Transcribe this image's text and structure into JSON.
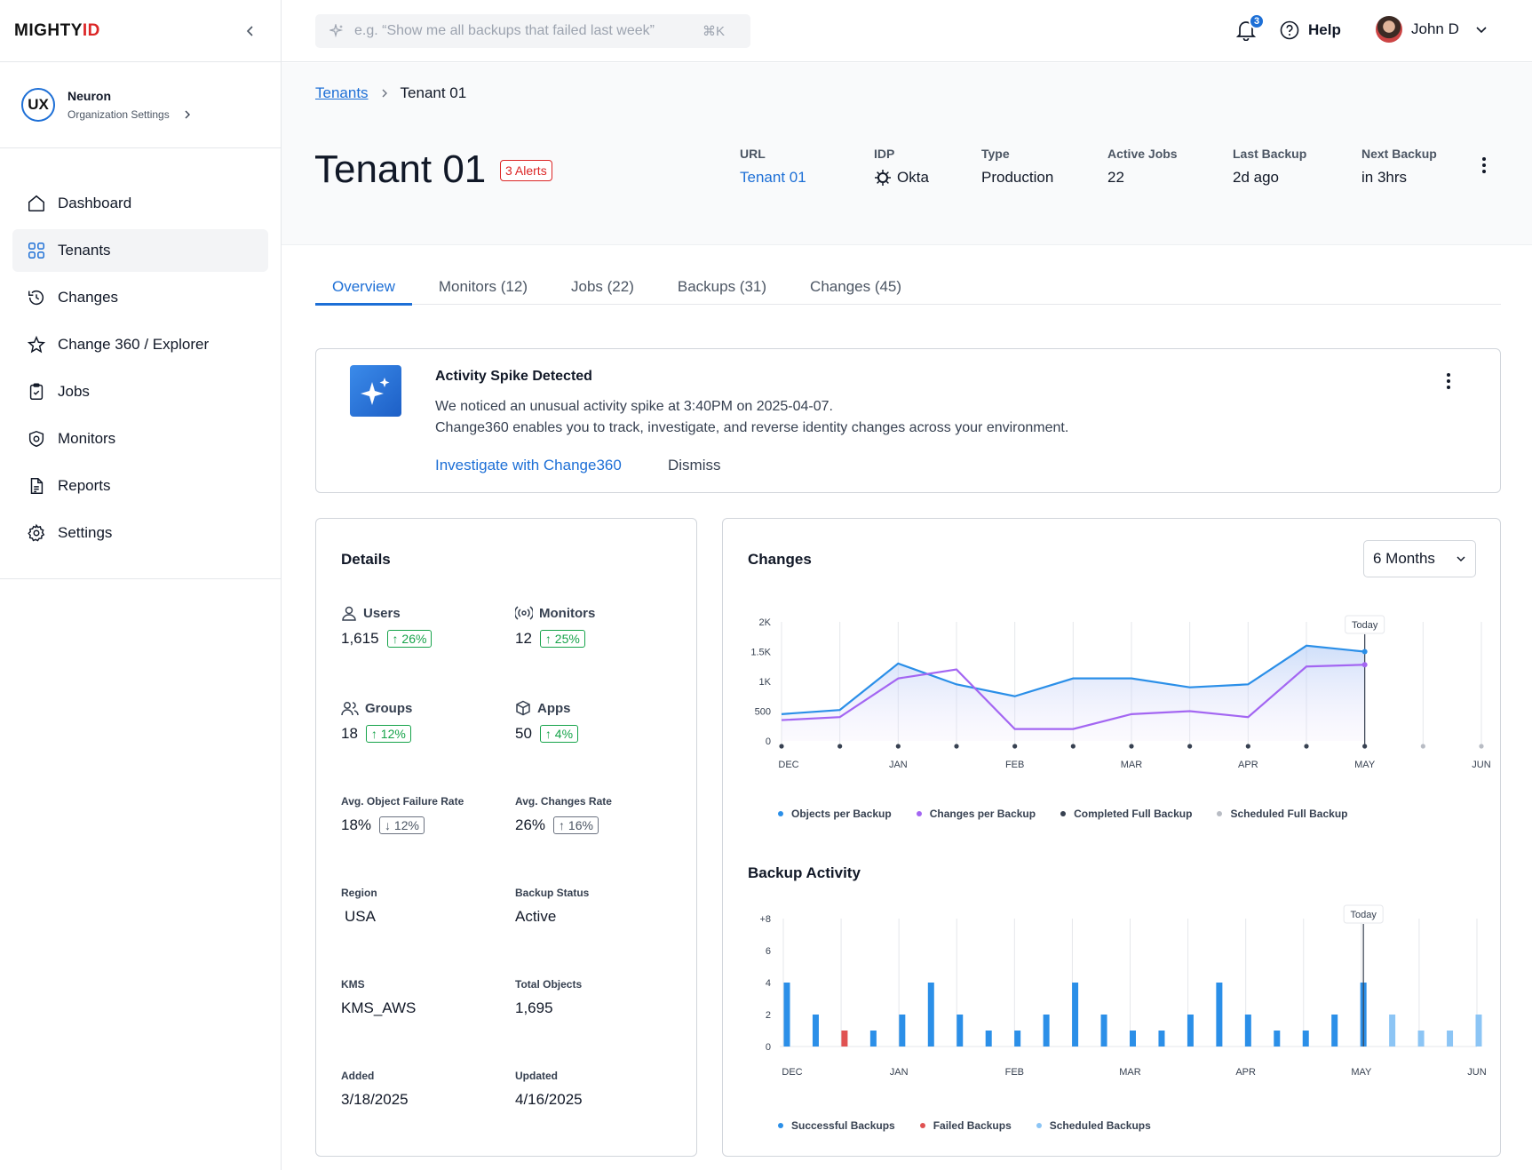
{
  "brand": {
    "logo_main": "MIGHTY",
    "logo_accent": "ID"
  },
  "org": {
    "initials": "UX",
    "name": "Neuron",
    "subtitle": "Organization Settings"
  },
  "nav": [
    {
      "label": "Dashboard",
      "icon": "home-icon"
    },
    {
      "label": "Tenants",
      "icon": "grid-icon",
      "active": true
    },
    {
      "label": "Changes",
      "icon": "history-icon"
    },
    {
      "label": "Change 360 / Explorer",
      "icon": "star-icon"
    },
    {
      "label": "Jobs",
      "icon": "clipboard-icon"
    },
    {
      "label": "Monitors",
      "icon": "monitor-shield-icon"
    },
    {
      "label": "Reports",
      "icon": "report-icon"
    },
    {
      "label": "Settings",
      "icon": "gear-icon"
    }
  ],
  "topbar": {
    "search_placeholder": "e.g. “Show me all backups that failed last week”",
    "search_shortcut": "⌘K",
    "notifications_count": "3",
    "help_label": "Help",
    "user_name": "John D"
  },
  "breadcrumb": {
    "parent": "Tenants",
    "current": "Tenant 01"
  },
  "tenant": {
    "title": "Tenant 01",
    "alerts": "3 Alerts",
    "meta": [
      {
        "label": "URL",
        "value": "Tenant 01",
        "link": true
      },
      {
        "label": "IDP",
        "value": "Okta"
      },
      {
        "label": "Type",
        "value": "Production"
      },
      {
        "label": "Active Jobs",
        "value": "22"
      },
      {
        "label": "Last Backup",
        "value": "2d ago"
      },
      {
        "label": "Next Backup",
        "value": "in 3hrs"
      }
    ]
  },
  "tabs": [
    {
      "label": "Overview",
      "active": true
    },
    {
      "label": "Monitors (12)"
    },
    {
      "label": "Jobs (22)"
    },
    {
      "label": "Backups (31)"
    },
    {
      "label": "Changes (45)"
    }
  ],
  "banner": {
    "title": "Activity Spike Detected",
    "line1": "We noticed an unusual activity spike at 3:40PM on 2025-04-07.",
    "line2": "Change360 enables you to track, investigate, and reverse identity changes across your environment.",
    "action": "Investigate with Change360",
    "dismiss": "Dismiss"
  },
  "details": {
    "title": "Details",
    "users": {
      "label": "Users",
      "value": "1,615",
      "trend": "↑ 26%"
    },
    "monitors": {
      "label": "Monitors",
      "value": "12",
      "trend": "↑ 25%"
    },
    "groups": {
      "label": "Groups",
      "value": "18",
      "trend": "↑ 12%"
    },
    "apps": {
      "label": "Apps",
      "value": "50",
      "trend": "↑ 4%"
    },
    "failure_rate": {
      "label": "Avg. Object Failure Rate",
      "value": "18%",
      "trend": "↓ 12%"
    },
    "changes_rate": {
      "label": "Avg. Changes Rate",
      "value": "26%",
      "trend": "↑ 16%"
    },
    "region": {
      "label": "Region",
      "value": "USA"
    },
    "backup_status": {
      "label": "Backup Status",
      "value": "Active"
    },
    "kms": {
      "label": "KMS",
      "value": "KMS_AWS"
    },
    "total_objects": {
      "label": "Total Objects",
      "value": "1,695"
    },
    "added": {
      "label": "Added",
      "value": "3/18/2025"
    },
    "updated": {
      "label": "Updated",
      "value": "4/16/2025"
    }
  },
  "changes_panel": {
    "title": "Changes",
    "range_select": "6 Months",
    "backup_title": "Backup Activity"
  },
  "colors": {
    "blue": "#2b8fe8",
    "purple": "#a366f2",
    "dark": "#374151",
    "gray": "#b8bcc4",
    "red": "#e05252",
    "lightblue": "#8cc5f5",
    "accent": "#1d6fd6"
  },
  "chart_data": [
    {
      "type": "line",
      "title": "Changes",
      "x_tick_labels": [
        "DEC",
        "JAN",
        "FEB",
        "MAR",
        "APR",
        "MAY",
        "JUN"
      ],
      "y_tick_labels": [
        "0",
        "500",
        "1K",
        "1.5K",
        "2K"
      ],
      "ylim": [
        0,
        2000
      ],
      "today_label": "Today",
      "today_index": 10,
      "series": [
        {
          "name": "Objects per Backup",
          "color": "#2b8fe8",
          "values": [
            450,
            520,
            1300,
            950,
            750,
            1050,
            1050,
            900,
            950,
            1600,
            1500
          ]
        },
        {
          "name": "Changes per Backup",
          "color": "#a366f2",
          "values": [
            350,
            400,
            1050,
            1200,
            200,
            200,
            450,
            500,
            400,
            1250,
            1280
          ]
        }
      ],
      "markers": [
        {
          "name": "Completed Full Backup",
          "color": "#374151",
          "count": 11
        },
        {
          "name": "Scheduled Full Backup",
          "color": "#b8bcc4",
          "count": 2
        }
      ],
      "grid": true,
      "legend": "bottom"
    },
    {
      "type": "bar",
      "title": "Backup Activity",
      "x_tick_labels": [
        "DEC",
        "JAN",
        "FEB",
        "MAR",
        "APR",
        "MAY",
        "JUN"
      ],
      "y_tick_labels": [
        "0",
        "2",
        "4",
        "6",
        "+8"
      ],
      "ylim": [
        0,
        8
      ],
      "today_label": "Today",
      "today_index": 20,
      "bars": [
        {
          "value": 4,
          "kind": "success"
        },
        {
          "value": 2,
          "kind": "success"
        },
        {
          "value": 1,
          "kind": "failed"
        },
        {
          "value": 1,
          "kind": "success"
        },
        {
          "value": 2,
          "kind": "success"
        },
        {
          "value": 4,
          "kind": "success"
        },
        {
          "value": 2,
          "kind": "success"
        },
        {
          "value": 1,
          "kind": "success"
        },
        {
          "value": 1,
          "kind": "success"
        },
        {
          "value": 2,
          "kind": "success"
        },
        {
          "value": 4,
          "kind": "success"
        },
        {
          "value": 2,
          "kind": "success"
        },
        {
          "value": 1,
          "kind": "success"
        },
        {
          "value": 1,
          "kind": "success"
        },
        {
          "value": 2,
          "kind": "success"
        },
        {
          "value": 4,
          "kind": "success"
        },
        {
          "value": 2,
          "kind": "success"
        },
        {
          "value": 1,
          "kind": "success"
        },
        {
          "value": 1,
          "kind": "success"
        },
        {
          "value": 2,
          "kind": "success"
        },
        {
          "value": 4,
          "kind": "success"
        },
        {
          "value": 2,
          "kind": "scheduled"
        },
        {
          "value": 1,
          "kind": "scheduled"
        },
        {
          "value": 1,
          "kind": "scheduled"
        },
        {
          "value": 2,
          "kind": "scheduled"
        }
      ],
      "legend_entries": [
        "Successful Backups",
        "Failed Backups",
        "Scheduled Backups"
      ],
      "grid": true,
      "legend": "bottom"
    }
  ]
}
